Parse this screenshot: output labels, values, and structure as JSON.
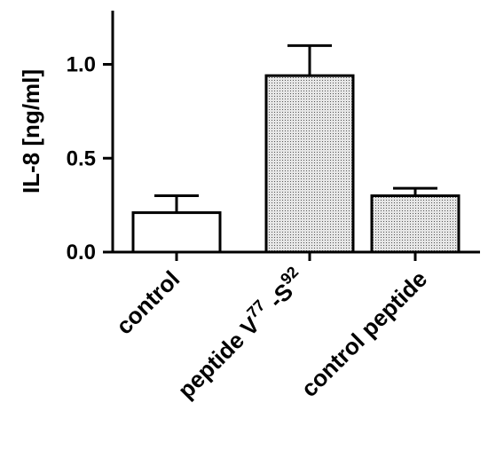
{
  "chart_data": {
    "type": "bar",
    "title": "",
    "xlabel": "",
    "ylabel": "IL-8 [ng/ml]",
    "ylim": [
      0,
      1.28
    ],
    "yticks": [
      "0.0",
      "0.5",
      "1.0"
    ],
    "ytick_values": [
      0,
      0.5,
      1.0
    ],
    "categories": [
      "control",
      "peptide V",
      "control peptide"
    ],
    "category_superscripts": [
      null,
      {
        "sup1": "77",
        "mid": " -S",
        "sup2": "92"
      },
      null
    ],
    "values": [
      0.21,
      0.94,
      0.3
    ],
    "errors": [
      0.09,
      0.16,
      0.04
    ],
    "fills": [
      "#ffffff",
      "#d9d9d9",
      "#d9d9d9"
    ],
    "patterns": [
      "none",
      "dotted",
      "dotted"
    ],
    "grid": false
  }
}
